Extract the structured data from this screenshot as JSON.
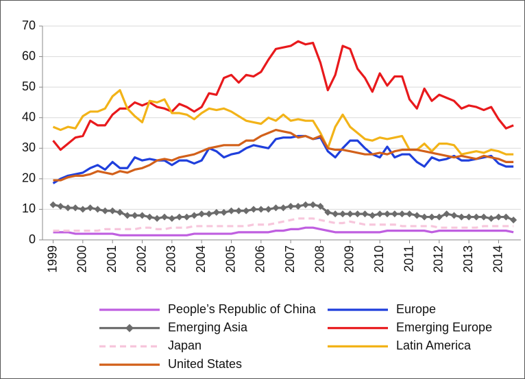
{
  "chart_data": {
    "type": "line",
    "x": [
      1999,
      1999.25,
      1999.5,
      1999.75,
      2000,
      2000.25,
      2000.5,
      2000.75,
      2001,
      2001.25,
      2001.5,
      2001.75,
      2002,
      2002.25,
      2002.5,
      2002.75,
      2003,
      2003.25,
      2003.5,
      2003.75,
      2004,
      2004.25,
      2004.5,
      2004.75,
      2005,
      2005.25,
      2005.5,
      2005.75,
      2006,
      2006.25,
      2006.5,
      2006.75,
      2007,
      2007.25,
      2007.5,
      2007.75,
      2008,
      2008.25,
      2008.5,
      2008.75,
      2009,
      2009.25,
      2009.5,
      2009.75,
      2010,
      2010.25,
      2010.5,
      2010.75,
      2011,
      2011.25,
      2011.5,
      2011.75,
      2012,
      2012.25,
      2012.5,
      2012.75,
      2013,
      2013.25,
      2013.5,
      2013.75,
      2014,
      2014.25,
      2014.5
    ],
    "xlim": [
      1998.85,
      2014.75
    ],
    "xticks": [
      1999,
      2000,
      2001,
      2002,
      2003,
      2004,
      2005,
      2006,
      2007,
      2008,
      2009,
      2010,
      2011,
      2012,
      2013,
      2014
    ],
    "ylim": [
      0,
      70
    ],
    "yticks": [
      0,
      10,
      20,
      30,
      40,
      50,
      60,
      70
    ],
    "grid": true,
    "series": [
      {
        "name": "People’s Republic of China",
        "color": "#bf5fe0",
        "values": [
          2.5,
          2.5,
          2.5,
          2,
          2,
          2,
          2,
          2,
          2,
          1.5,
          1.5,
          1.5,
          1.5,
          1.5,
          1.5,
          1.5,
          1.5,
          1.5,
          1.5,
          2,
          2,
          2,
          2,
          2,
          2,
          2.5,
          2.5,
          2.5,
          2.5,
          2.5,
          3,
          3,
          3.5,
          3.5,
          4,
          4,
          3.5,
          3,
          2.5,
          2.5,
          2.5,
          2.5,
          2.5,
          2.5,
          2.5,
          3,
          3,
          3,
          3,
          3,
          3,
          2.5,
          3,
          3,
          3,
          3,
          3,
          3,
          3,
          3,
          3,
          3,
          2.5
        ]
      },
      {
        "name": "Europe",
        "color": "#1f3fdc",
        "values": [
          18.5,
          20,
          21,
          21.5,
          22,
          23.5,
          24.5,
          23,
          25.5,
          23.5,
          23.5,
          27,
          26,
          26.5,
          26,
          26,
          24.5,
          26,
          26,
          25,
          26,
          30,
          29,
          27,
          28,
          28.5,
          30,
          31,
          30.5,
          30,
          33,
          33.5,
          33.5,
          34,
          34,
          33,
          33.5,
          29,
          27,
          30,
          32.5,
          32.5,
          30,
          28,
          27,
          30.5,
          27,
          28,
          28,
          25.5,
          24,
          27,
          26,
          26.5,
          27.5,
          26,
          26,
          26.5,
          27,
          27.5,
          25,
          24,
          24
        ]
      },
      {
        "name": "Emerging Asia",
        "color": "#6b6b6b",
        "marker": "diamond",
        "values": [
          11.5,
          11,
          10.5,
          10.5,
          10,
          10.5,
          10,
          9.5,
          9.5,
          9,
          8,
          8,
          8,
          7.5,
          7,
          7.5,
          7,
          7.5,
          7.5,
          8,
          8.5,
          8.5,
          9,
          9,
          9.5,
          9.5,
          9.5,
          10,
          10,
          10,
          10.5,
          10.5,
          11,
          11,
          11.5,
          11.5,
          11,
          9,
          8.5,
          8.5,
          8.5,
          8.5,
          8.5,
          8,
          8.5,
          8.5,
          8.5,
          8.5,
          8.5,
          8,
          7.5,
          7.5,
          7.5,
          8.5,
          8,
          7.5,
          7.5,
          7.5,
          7.5,
          7,
          7.5,
          7.5,
          6.5
        ]
      },
      {
        "name": "Emerging Europe",
        "color": "#e8191c",
        "values": [
          32.5,
          29.5,
          31.5,
          33.5,
          34,
          39,
          37.5,
          37.5,
          41,
          43,
          43,
          45,
          44,
          45,
          43.5,
          43,
          42,
          44.5,
          43.5,
          42,
          43.5,
          48,
          47.5,
          53,
          54,
          51.5,
          54,
          53.5,
          55,
          59,
          62.5,
          63,
          63.5,
          65,
          64,
          64.5,
          58,
          49,
          54,
          63.5,
          62.5,
          56,
          53,
          48.5,
          54.5,
          50.5,
          53.5,
          53.5,
          46,
          43,
          49.5,
          45.5,
          47.5,
          46.5,
          45.5,
          43,
          44,
          43.5,
          42.5,
          43.5,
          39.5,
          36.5,
          37.5
        ]
      },
      {
        "name": "Japan",
        "color": "#f7c6dc",
        "dash": true,
        "values": [
          3,
          3,
          3,
          3,
          3,
          3,
          3,
          3.5,
          3.5,
          3.5,
          3.5,
          3.5,
          4,
          4,
          3.5,
          3.5,
          4,
          4,
          4,
          4.5,
          4.5,
          4.5,
          4.5,
          4.5,
          4.5,
          4.5,
          4.5,
          5,
          5,
          5,
          5.5,
          6,
          6.5,
          7,
          7,
          7,
          6.5,
          6,
          5.5,
          5.5,
          6,
          5.5,
          5,
          5,
          5,
          5,
          5,
          4.5,
          4.5,
          4.5,
          4.5,
          4.5,
          4,
          4,
          4,
          4,
          4,
          4,
          4.5,
          4.5,
          4.5,
          4.5,
          4.5
        ]
      },
      {
        "name": "Latin America",
        "color": "#f2b318",
        "values": [
          37,
          36,
          37,
          36.5,
          40.5,
          42,
          42,
          43,
          47,
          49,
          43,
          40.5,
          38.5,
          45.5,
          45,
          46,
          41.5,
          41.5,
          41,
          39.5,
          41.5,
          43,
          42.5,
          43,
          42,
          40.5,
          39,
          38.5,
          38,
          40,
          39,
          41,
          39,
          39.5,
          39,
          39,
          35,
          30,
          37,
          41,
          37,
          35,
          33,
          32.5,
          33.5,
          33,
          33.5,
          34,
          29.5,
          29.5,
          31.5,
          29,
          31.5,
          31.5,
          31,
          28,
          28.5,
          29,
          28.5,
          29.5,
          29,
          28,
          28
        ]
      },
      {
        "name": "United States",
        "color": "#d2601a",
        "values": [
          19.5,
          19.5,
          20.5,
          21,
          21,
          21.5,
          22.5,
          22,
          21.5,
          22.5,
          22,
          23,
          23.5,
          24.5,
          26,
          26.5,
          26,
          27,
          27.5,
          28,
          29,
          30,
          30.5,
          31,
          31,
          31,
          32.5,
          32.5,
          34,
          35,
          36,
          35.5,
          35,
          33.5,
          34,
          33,
          34,
          30,
          29.5,
          29.5,
          29,
          28.5,
          28,
          28,
          28.5,
          28,
          29,
          29.5,
          29.5,
          29.5,
          29,
          28.5,
          28,
          27.5,
          27,
          27.5,
          27,
          26.5,
          27.5,
          27,
          26.5,
          25.5,
          25.5
        ]
      }
    ]
  }
}
